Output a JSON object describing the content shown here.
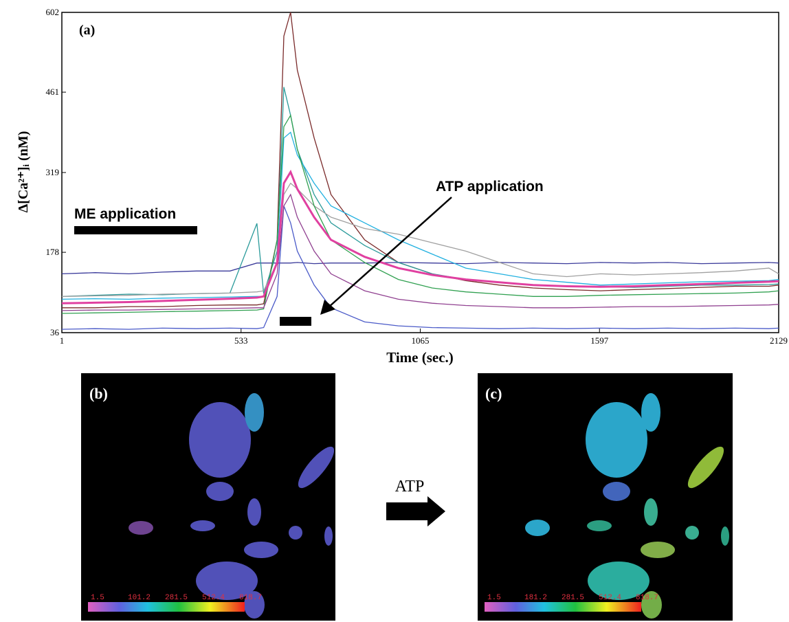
{
  "chart_data": {
    "type": "line",
    "panel_label": "(a)",
    "xlabel": "Time   (sec.)",
    "ylabel": "Δ[Ca²⁺]ᵢ (nM)",
    "annotations": [
      "ME   application",
      "ATP   application"
    ],
    "xlim": [
      1,
      2129
    ],
    "ylim": [
      36,
      602
    ],
    "xticks": [
      1,
      533,
      1065,
      1597,
      2129
    ],
    "yticks": [
      36,
      178,
      319,
      461,
      602
    ],
    "x": [
      1,
      100,
      200,
      300,
      400,
      500,
      580,
      600,
      640,
      660,
      680,
      700,
      750,
      800,
      900,
      1000,
      1100,
      1200,
      1300,
      1400,
      1500,
      1600,
      1700,
      1800,
      1900,
      2000,
      2100,
      2129
    ],
    "series": [
      {
        "color": "#7a2a2a",
        "values": [
          80,
          80,
          82,
          82,
          84,
          85,
          85,
          87,
          200,
          560,
          602,
          500,
          380,
          280,
          200,
          160,
          140,
          128,
          120,
          115,
          112,
          110,
          112,
          114,
          116,
          118,
          118,
          120
        ]
      },
      {
        "color": "#3a3a9a",
        "values": [
          140,
          142,
          140,
          143,
          145,
          145,
          159,
          159,
          159,
          159,
          159,
          160,
          158,
          159,
          159,
          160,
          159,
          158,
          160,
          159,
          158,
          160,
          159,
          160,
          158,
          159,
          160,
          159
        ]
      },
      {
        "color": "#4a5ac8",
        "values": [
          42,
          43,
          42,
          44,
          43,
          44,
          43,
          45,
          100,
          260,
          230,
          180,
          120,
          80,
          55,
          48,
          45,
          44,
          43,
          44,
          43,
          44,
          43,
          44,
          43,
          44,
          43,
          44
        ]
      },
      {
        "color": "#2a9a9a",
        "values": [
          100,
          102,
          104,
          103,
          105,
          106,
          229,
          105,
          180,
          470,
          420,
          360,
          280,
          230,
          190,
          160,
          140,
          130,
          125,
          120,
          118,
          117,
          116,
          118,
          120,
          120,
          121,
          122
        ]
      },
      {
        "color": "#20b0e0",
        "values": [
          95,
          96,
          95,
          97,
          98,
          99,
          100,
          100,
          160,
          380,
          390,
          350,
          300,
          260,
          230,
          200,
          175,
          150,
          140,
          130,
          125,
          120,
          122,
          124,
          126,
          127,
          128,
          130
        ]
      },
      {
        "color": "#a0a0a0",
        "values": [
          100,
          101,
          102,
          104,
          105,
          106,
          108,
          110,
          160,
          280,
          300,
          290,
          260,
          240,
          220,
          210,
          195,
          180,
          160,
          140,
          135,
          140,
          138,
          140,
          142,
          145,
          150,
          140
        ]
      },
      {
        "color": "#30a050",
        "values": [
          70,
          71,
          72,
          73,
          74,
          75,
          76,
          78,
          200,
          400,
          420,
          360,
          260,
          200,
          160,
          130,
          115,
          108,
          104,
          100,
          100,
          102,
          103,
          104,
          105,
          106,
          108,
          110
        ]
      },
      {
        "color": "#904090",
        "values": [
          75,
          76,
          76,
          77,
          78,
          79,
          80,
          80,
          140,
          260,
          280,
          240,
          180,
          140,
          110,
          95,
          88,
          84,
          82,
          80,
          80,
          81,
          82,
          82,
          83,
          84,
          85,
          86
        ]
      },
      {
        "color": "#e040a0",
        "values": [
          88,
          89,
          90,
          92,
          94,
          96,
          98,
          100,
          160,
          300,
          320,
          290,
          240,
          200,
          170,
          150,
          138,
          130,
          125,
          120,
          118,
          117,
          118,
          120,
          122,
          124,
          126,
          127
        ]
      }
    ]
  },
  "images": {
    "arrow_label": "ATP",
    "panels": [
      {
        "label": "(b)",
        "colorbar": [
          "1.5",
          "101.2",
          "281.5",
          "512.4",
          "818.7"
        ]
      },
      {
        "label": "(c)",
        "colorbar": [
          "1.5",
          "181.2",
          "281.5",
          "512.4",
          "818.7"
        ]
      }
    ]
  }
}
